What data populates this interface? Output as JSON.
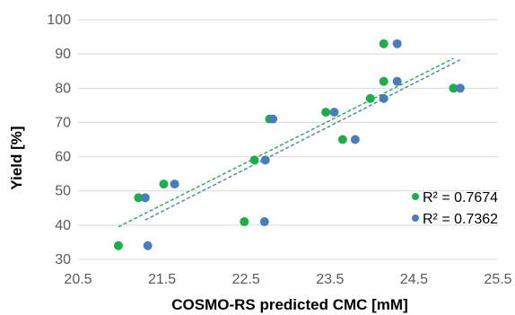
{
  "chart_data": {
    "type": "scatter",
    "xlabel": "COSMO-RS predicted CMC [mM]",
    "ylabel": "Yield [%]",
    "xlim": [
      20.5,
      25.5
    ],
    "ylim": [
      30,
      100
    ],
    "xticks": [
      "20.5",
      "21.5",
      "22.5",
      "23.5",
      "24.5",
      "25.5"
    ],
    "yticks": [
      "30",
      "40",
      "50",
      "60",
      "70",
      "80",
      "90",
      "100"
    ],
    "grid": "horizontal",
    "legend": "bottom-right",
    "series": [
      {
        "name": "R² = 0.7674",
        "color": "#1fad4b",
        "points": [
          {
            "x": 20.98,
            "y": 34
          },
          {
            "x": 21.22,
            "y": 48
          },
          {
            "x": 21.52,
            "y": 52
          },
          {
            "x": 22.48,
            "y": 41
          },
          {
            "x": 22.6,
            "y": 59
          },
          {
            "x": 22.78,
            "y": 71
          },
          {
            "x": 23.45,
            "y": 73
          },
          {
            "x": 23.65,
            "y": 65
          },
          {
            "x": 23.98,
            "y": 77
          },
          {
            "x": 24.14,
            "y": 82
          },
          {
            "x": 24.14,
            "y": 93
          },
          {
            "x": 24.97,
            "y": 80
          }
        ],
        "trend": {
          "x": [
            20.98,
            24.97
          ],
          "y": [
            39.5,
            88.7
          ]
        }
      },
      {
        "name": "R² = 0.7362",
        "color": "#4a7ebb",
        "points": [
          {
            "x": 21.33,
            "y": 34
          },
          {
            "x": 21.3,
            "y": 48
          },
          {
            "x": 21.65,
            "y": 52
          },
          {
            "x": 22.72,
            "y": 41
          },
          {
            "x": 22.73,
            "y": 59
          },
          {
            "x": 22.82,
            "y": 71
          },
          {
            "x": 23.55,
            "y": 73
          },
          {
            "x": 23.8,
            "y": 65
          },
          {
            "x": 24.14,
            "y": 77
          },
          {
            "x": 24.3,
            "y": 82
          },
          {
            "x": 24.3,
            "y": 93
          },
          {
            "x": 25.05,
            "y": 80
          }
        ],
        "trend": {
          "x": [
            21.3,
            25.05
          ],
          "y": [
            41.5,
            88.3
          ]
        }
      }
    ]
  }
}
